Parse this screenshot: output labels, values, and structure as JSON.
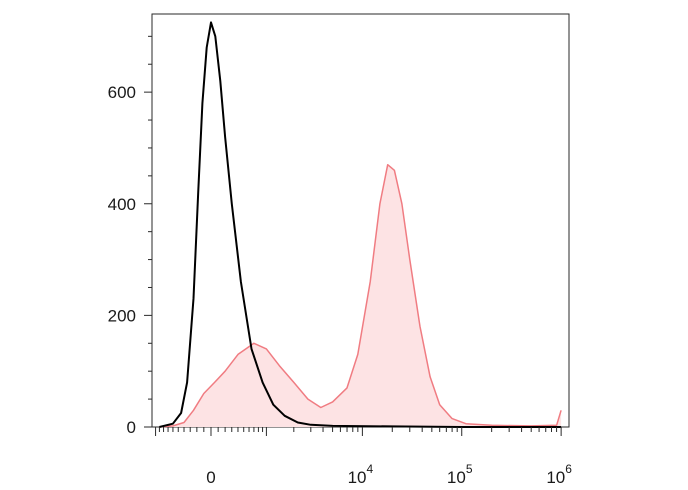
{
  "chart_data": {
    "type": "area",
    "title": "",
    "xlabel": "",
    "ylabel": "",
    "x_scale": "biexponential",
    "ylim": [
      0,
      740
    ],
    "y_ticks": [
      {
        "value": 0,
        "label": "0"
      },
      {
        "value": 200,
        "label": "200"
      },
      {
        "value": 400,
        "label": "400"
      },
      {
        "value": 600,
        "label": "600"
      }
    ],
    "x_ticks": [
      {
        "value": "0",
        "label": "0",
        "exp": ""
      },
      {
        "value": "1e4",
        "label": "10",
        "exp": "4"
      },
      {
        "value": "1e5",
        "label": "10",
        "exp": "5"
      },
      {
        "value": "1e6",
        "label": "10",
        "exp": "6"
      }
    ],
    "grid": false,
    "legend": "none",
    "series": [
      {
        "color": "#000000",
        "fill": "none",
        "points": [
          [
            -900,
            0
          ],
          [
            -600,
            6
          ],
          [
            -450,
            25
          ],
          [
            -350,
            80
          ],
          [
            -250,
            230
          ],
          [
            -180,
            420
          ],
          [
            -120,
            580
          ],
          [
            -60,
            680
          ],
          [
            0,
            725
          ],
          [
            60,
            700
          ],
          [
            130,
            620
          ],
          [
            200,
            520
          ],
          [
            300,
            400
          ],
          [
            450,
            260
          ],
          [
            650,
            140
          ],
          [
            900,
            80
          ],
          [
            1200,
            40
          ],
          [
            1600,
            20
          ],
          [
            2200,
            8
          ],
          [
            3000,
            4
          ],
          [
            5000,
            2
          ],
          [
            20000,
            1
          ],
          [
            100000,
            0
          ],
          [
            1000000,
            0
          ]
        ]
      },
      {
        "color": "#f07c82",
        "fill": "#fde3e4",
        "points": [
          [
            -900,
            0
          ],
          [
            -600,
            2
          ],
          [
            -400,
            8
          ],
          [
            -250,
            30
          ],
          [
            -100,
            60
          ],
          [
            50,
            80
          ],
          [
            200,
            100
          ],
          [
            400,
            130
          ],
          [
            700,
            150
          ],
          [
            1000,
            140
          ],
          [
            1400,
            110
          ],
          [
            2000,
            80
          ],
          [
            2800,
            50
          ],
          [
            3800,
            35
          ],
          [
            5000,
            45
          ],
          [
            7000,
            70
          ],
          [
            9000,
            130
          ],
          [
            12000,
            260
          ],
          [
            15000,
            400
          ],
          [
            18000,
            470
          ],
          [
            21000,
            460
          ],
          [
            25000,
            400
          ],
          [
            30000,
            300
          ],
          [
            38000,
            180
          ],
          [
            48000,
            90
          ],
          [
            60000,
            40
          ],
          [
            80000,
            15
          ],
          [
            110000,
            6
          ],
          [
            200000,
            3
          ],
          [
            500000,
            2
          ],
          [
            900000,
            3
          ],
          [
            1000000,
            30
          ]
        ]
      }
    ]
  }
}
